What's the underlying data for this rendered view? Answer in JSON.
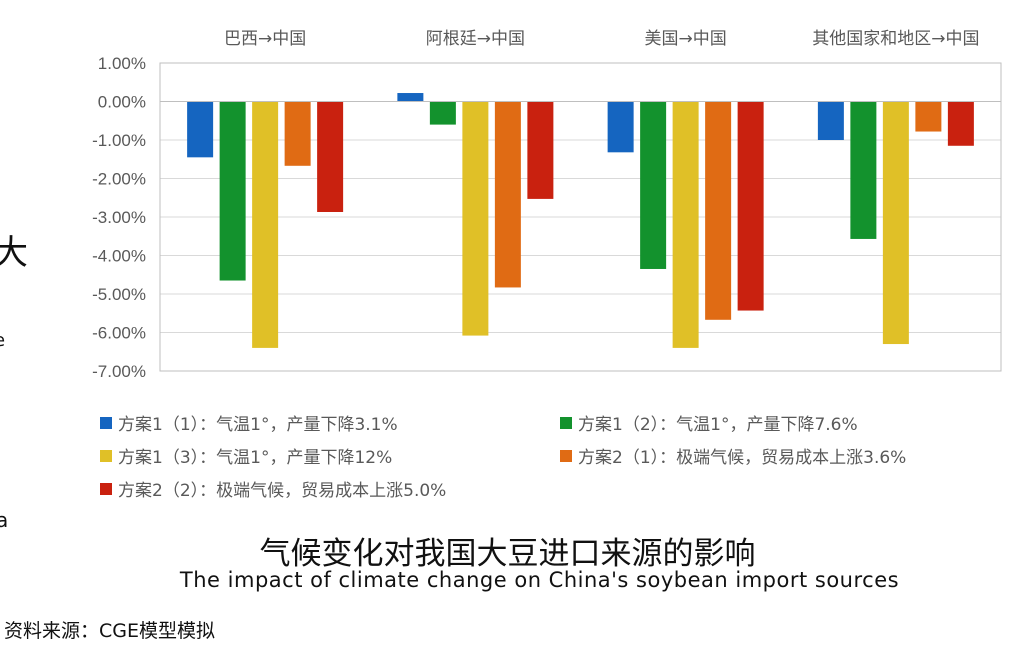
{
  "chart_data": {
    "type": "bar",
    "categories": [
      "巴西→中国",
      "阿根廷→中国",
      "美国→中国",
      "其他国家和地区→中国"
    ],
    "series": [
      {
        "name": "方案1（1）：气温1°，产量下降3.1%",
        "color": "#1565C0",
        "values": [
          -1.45,
          0.22,
          -1.32,
          -1.0
        ]
      },
      {
        "name": "方案1（2）：气温1°，产量下降7.6%",
        "color": "#13922D",
        "values": [
          -4.65,
          -0.6,
          -4.35,
          -3.57
        ]
      },
      {
        "name": "方案1（3）：气温1°，产量下降12%",
        "color": "#E0C027",
        "values": [
          -6.4,
          -6.08,
          -6.4,
          -6.3
        ]
      },
      {
        "name": "方案2（1）：极端气候，贸易成本上涨3.6%",
        "color": "#E06B14",
        "values": [
          -1.67,
          -4.83,
          -5.67,
          -0.78
        ]
      },
      {
        "name": "方案2（2）：极端气候，贸易成本上涨5.0%",
        "color": "#C9210F",
        "values": [
          -2.87,
          -2.53,
          -5.43,
          -1.15
        ]
      }
    ],
    "yticks": [
      "1.00%",
      "0.00%",
      "-1.00%",
      "-2.00%",
      "-3.00%",
      "-4.00%",
      "-5.00%",
      "-6.00%",
      "-7.00%"
    ],
    "ylim": [
      -7,
      1
    ],
    "grid": true,
    "legend_position": "bottom"
  },
  "title_cn": "气候变化对我国大豆进口来源的影响",
  "title_en": "The impact of climate change on China's soybean import sources",
  "source": "资料来源：CGE模型模拟",
  "edge_fragments": [
    "大",
    "e",
    "a"
  ]
}
